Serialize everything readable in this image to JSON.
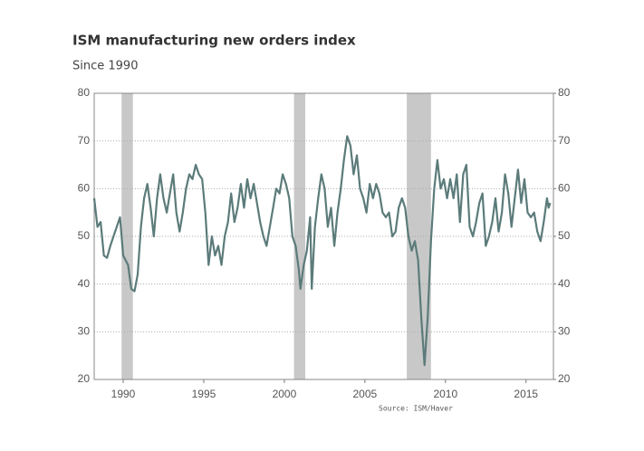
{
  "chart_data": {
    "type": "line",
    "title": "ISM manufacturing new orders index",
    "subtitle": "Since 1990",
    "source": "Source: ISM/Haver",
    "xlim": [
      1988.2,
      2016.7
    ],
    "xticks": [
      1990,
      1995,
      2000,
      2005,
      2010,
      2015
    ],
    "ylim": [
      20,
      80
    ],
    "yticks": [
      20,
      30,
      40,
      50,
      60,
      70,
      80
    ],
    "y2lim": [
      20,
      80
    ],
    "y2ticks": [
      20,
      30,
      40,
      50,
      60,
      70,
      80
    ],
    "grid": true,
    "recessions": [
      [
        1989.9,
        1990.6
      ],
      [
        2000.6,
        2001.3
      ],
      [
        2007.6,
        2009.1
      ]
    ],
    "recession_color": "#c8c8c8",
    "series": [
      {
        "color": "#5b7b7a",
        "x": [
          1988.2,
          1988.4,
          1988.6,
          1988.8,
          1989.0,
          1989.2,
          1989.4,
          1989.6,
          1989.8,
          1990.0,
          1990.3,
          1990.5,
          1990.7,
          1990.9,
          1991.1,
          1991.3,
          1991.5,
          1991.7,
          1991.9,
          1992.1,
          1992.3,
          1992.5,
          1992.7,
          1992.9,
          1993.1,
          1993.3,
          1993.5,
          1993.7,
          1993.9,
          1994.1,
          1994.3,
          1994.5,
          1994.7,
          1994.9,
          1995.1,
          1995.3,
          1995.5,
          1995.7,
          1995.9,
          1996.1,
          1996.3,
          1996.5,
          1996.7,
          1996.9,
          1997.1,
          1997.3,
          1997.5,
          1997.7,
          1997.9,
          1998.1,
          1998.3,
          1998.5,
          1998.7,
          1998.9,
          1999.1,
          1999.3,
          1999.5,
          1999.7,
          1999.9,
          2000.1,
          2000.3,
          2000.5,
          2000.7,
          2000.9,
          2001.0,
          2001.2,
          2001.4,
          2001.6,
          2001.7,
          2001.9,
          2002.1,
          2002.3,
          2002.5,
          2002.7,
          2002.9,
          2003.1,
          2003.3,
          2003.5,
          2003.7,
          2003.9,
          2004.1,
          2004.3,
          2004.5,
          2004.7,
          2004.9,
          2005.1,
          2005.3,
          2005.5,
          2005.7,
          2005.9,
          2006.1,
          2006.3,
          2006.5,
          2006.7,
          2006.9,
          2007.1,
          2007.3,
          2007.5,
          2007.7,
          2007.9,
          2008.1,
          2008.3,
          2008.5,
          2008.7,
          2008.9,
          2009.1,
          2009.3,
          2009.5,
          2009.7,
          2009.9,
          2010.1,
          2010.3,
          2010.5,
          2010.7,
          2010.9,
          2011.1,
          2011.3,
          2011.5,
          2011.7,
          2011.9,
          2012.1,
          2012.3,
          2012.5,
          2012.7,
          2012.9,
          2013.1,
          2013.3,
          2013.5,
          2013.7,
          2013.9,
          2014.1,
          2014.3,
          2014.5,
          2014.7,
          2014.9,
          2015.1,
          2015.3,
          2015.5,
          2015.7,
          2015.9,
          2016.1,
          2016.3,
          2016.4,
          2016.5
        ],
        "values": [
          58,
          52,
          53,
          46,
          45.5,
          48,
          50,
          52,
          54,
          46,
          44,
          39,
          38.5,
          42,
          52,
          58,
          61,
          56,
          50,
          58,
          63,
          58,
          55,
          59,
          63,
          55,
          51,
          55,
          60,
          63,
          62,
          65,
          63,
          62,
          55,
          44,
          50,
          46,
          48,
          44,
          50,
          53,
          59,
          53,
          56,
          61,
          56,
          62,
          58,
          61,
          57,
          53,
          50,
          48,
          52,
          56,
          60,
          59,
          63,
          61,
          58,
          50,
          48,
          43,
          39,
          44,
          47,
          54,
          39,
          52,
          58,
          63,
          60,
          52,
          56,
          48,
          55,
          60,
          66,
          71,
          69,
          63,
          67,
          60,
          58,
          55,
          61,
          58,
          61,
          59,
          55,
          54,
          55,
          50,
          51,
          56,
          58,
          56,
          50,
          47,
          49,
          45,
          33,
          23,
          33,
          49,
          60,
          66,
          60,
          62,
          58,
          62,
          58,
          63,
          53,
          63,
          65,
          52,
          50,
          53,
          57,
          59,
          48,
          50,
          53,
          58,
          51,
          55,
          63,
          59,
          52,
          58,
          64,
          57,
          62,
          55,
          54,
          55,
          51,
          49,
          53,
          58,
          56,
          57
        ]
      }
    ]
  }
}
